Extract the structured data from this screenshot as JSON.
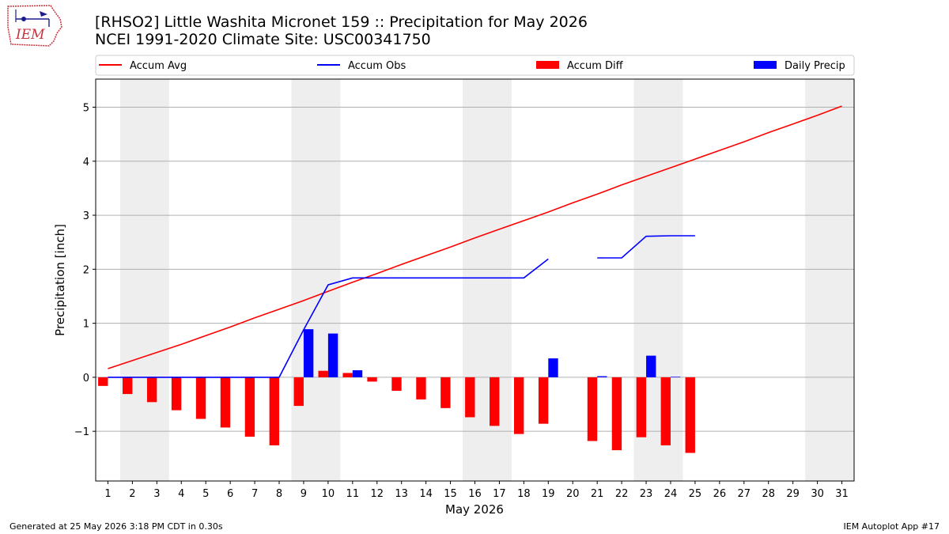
{
  "title_line1": "[RHSO2] Little Washita Micronet 159 :: Precipitation for May 2026",
  "title_line2": "NCEI 1991-2020 Climate Site: USC00341750",
  "logo_text": "IEM",
  "footer_left": "Generated at 25 May 2026 3:18 PM CDT in 0.30s",
  "footer_right": "IEM Autoplot App #17",
  "colors": {
    "avg": "#ff0000",
    "obs": "#0000ff",
    "diff": "#ff0000",
    "precip": "#0000ff",
    "weekend_band": "#eeeeee",
    "grid": "#b0b0b0"
  },
  "chart_data": {
    "type": "bar",
    "xlabel": "May 2026",
    "ylabel": "Precipitation [inch]",
    "x": [
      1,
      2,
      3,
      4,
      5,
      6,
      7,
      8,
      9,
      10,
      11,
      12,
      13,
      14,
      15,
      16,
      17,
      18,
      19,
      20,
      21,
      22,
      23,
      24,
      25,
      26,
      27,
      28,
      29,
      30,
      31
    ],
    "xlim": [
      0.5,
      31.5
    ],
    "ylim": [
      -1.92,
      5.52
    ],
    "yticks": [
      -1,
      0,
      1,
      2,
      3,
      4,
      5
    ],
    "ytick_labels": [
      "−1",
      "0",
      "1",
      "2",
      "3",
      "4",
      "5"
    ],
    "grid": "horizontal",
    "legend_position": "top, outside plot",
    "weekend_bands": [
      [
        1.5,
        3.5
      ],
      [
        8.5,
        10.5
      ],
      [
        15.5,
        17.5
      ],
      [
        22.5,
        24.5
      ],
      [
        29.5,
        31.5
      ]
    ],
    "series": [
      {
        "name": "Accum Avg",
        "kind": "line",
        "values": [
          0.16,
          0.31,
          0.46,
          0.61,
          0.77,
          0.93,
          1.1,
          1.26,
          1.42,
          1.59,
          1.76,
          1.92,
          2.09,
          2.25,
          2.41,
          2.58,
          2.74,
          2.9,
          3.06,
          3.23,
          3.39,
          3.56,
          3.72,
          3.88,
          4.04,
          4.2,
          4.36,
          4.53,
          4.69,
          4.85,
          5.02
        ]
      },
      {
        "name": "Accum Obs",
        "kind": "line",
        "values": [
          0,
          0,
          0,
          0,
          0,
          0,
          0,
          0,
          0.88,
          1.71,
          1.84,
          1.84,
          1.84,
          1.84,
          1.84,
          1.84,
          1.84,
          1.84,
          2.19,
          null,
          2.21,
          2.21,
          2.61,
          2.62,
          2.62,
          null,
          null,
          null,
          null,
          null,
          null
        ]
      },
      {
        "name": "Accum Diff",
        "kind": "bar",
        "values": [
          -0.16,
          -0.31,
          -0.46,
          -0.61,
          -0.77,
          -0.93,
          -1.1,
          -1.26,
          -0.53,
          0.12,
          0.08,
          -0.08,
          -0.25,
          -0.41,
          -0.57,
          -0.74,
          -0.9,
          -1.05,
          -0.86,
          null,
          -1.18,
          -1.35,
          -1.11,
          -1.26,
          -1.4,
          null,
          null,
          null,
          null,
          null,
          null
        ]
      },
      {
        "name": "Daily Precip",
        "kind": "bar",
        "values": [
          0,
          0,
          0,
          0,
          0,
          0,
          0,
          0,
          0.89,
          0.81,
          0.13,
          0,
          0,
          0,
          0,
          0,
          0,
          0,
          0.35,
          null,
          0.02,
          0,
          0.4,
          0.01,
          0,
          null,
          null,
          null,
          null,
          null,
          null
        ]
      }
    ]
  }
}
